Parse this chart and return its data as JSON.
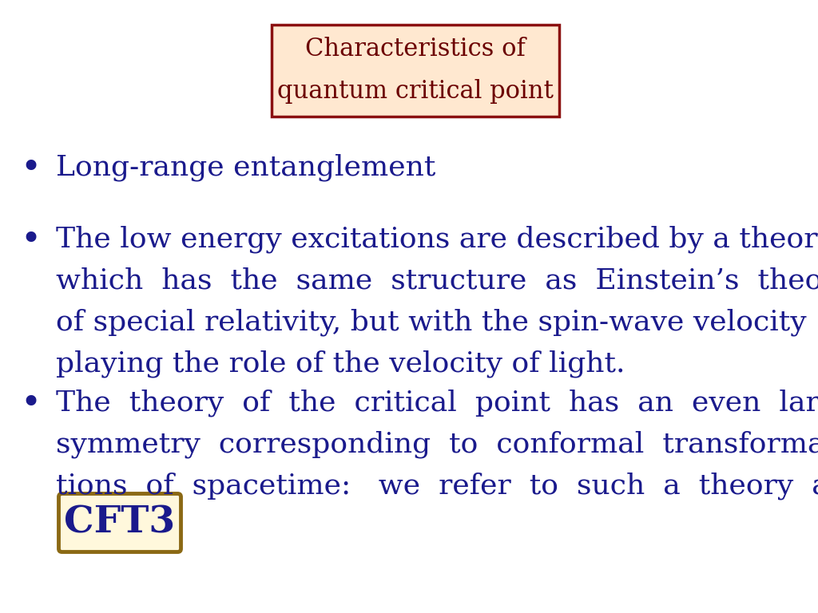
{
  "title_line1": "Characteristics of",
  "title_line2": "quantum critical point",
  "title_text_color": "#6B0000",
  "title_bg_color": "#FFE8D0",
  "title_border_color": "#8B1010",
  "bullet1": "Long-range entanglement",
  "bullet2_lines": [
    "The low energy excitations are described by a theory",
    "which  has  the  same  structure  as  Einstein’s  theory",
    "of special relativity, but with the spin-wave velocity",
    "playing the role of the velocity of light."
  ],
  "bullet3_lines": [
    "The  theory  of  the  critical  point  has  an  even  larger",
    "symmetry  corresponding  to  conformal  transforma-",
    "tions  of  spacetime:   we  refer  to  such  a  theory  as  a"
  ],
  "cft3_text": "CFT3",
  "cft3_text_color": "#1A1A8C",
  "cft3_bg_color": "#FFF8DC",
  "cft3_border_color": "#8B6914",
  "bullet_color": "#1A1A8C",
  "text_color": "#1A1A8C",
  "bg_color": "#FFFFFF",
  "bullet_symbol": "•",
  "title_fontsize": 22,
  "body_fontsize": 26,
  "bullet_fontsize": 32,
  "cft3_fontsize": 34
}
